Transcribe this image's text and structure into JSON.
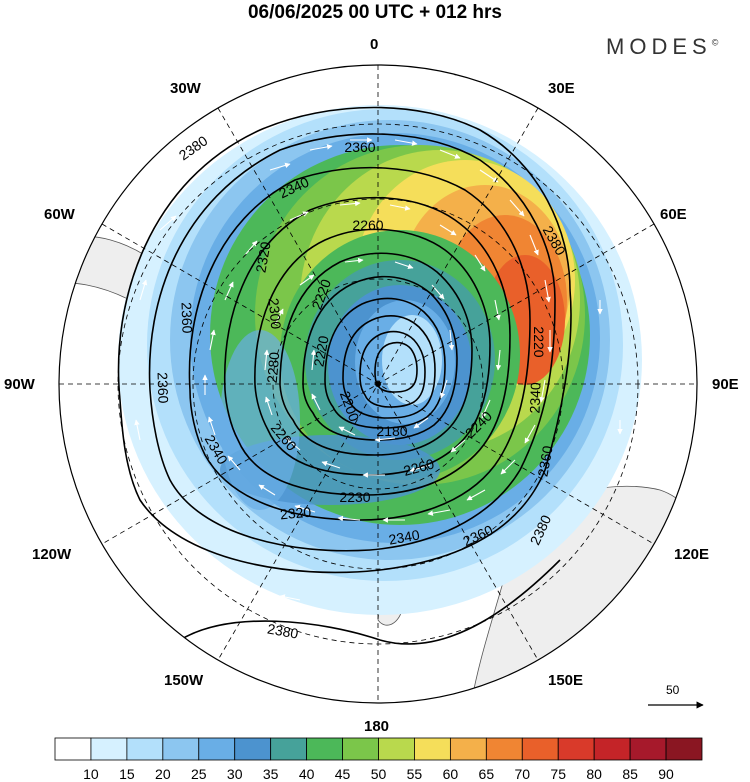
{
  "header": {
    "title": "06/06/2025  00 UTC  + 012 hrs",
    "brand": "MODES",
    "brand_mark": "©"
  },
  "map": {
    "projection": "south polar stereographic",
    "longitude_labels": {
      "top": "0",
      "top_right": "30E",
      "right_upper": "60E",
      "right": "90E",
      "right_lower": "120E",
      "bottom_right": "150E",
      "bottom": "180",
      "bottom_left": "150W",
      "left_lower": "120W",
      "left": "90W",
      "left_upper": "60W",
      "top_left": "30W"
    },
    "contour_labels": [
      "2380",
      "2360",
      "2340",
      "2320",
      "2300",
      "2280",
      "2260",
      "2240",
      "2220",
      "2200",
      "2180",
      "2230"
    ],
    "wind_reference_value": "50",
    "colors": {
      "land": "#eeeeee",
      "contour": "#000000",
      "graticule": "#000000"
    }
  },
  "colorbar": {
    "labels": [
      "10",
      "15",
      "20",
      "25",
      "30",
      "35",
      "40",
      "45",
      "50",
      "55",
      "60",
      "65",
      "70",
      "75",
      "80",
      "85",
      "90"
    ],
    "colors": [
      "#ffffff",
      "#d6f1ff",
      "#b3e0fb",
      "#8cc6f0",
      "#69aee6",
      "#4c93cf",
      "#46a29a",
      "#4cb859",
      "#7bc64a",
      "#b9d94d",
      "#f5de5a",
      "#f4b04a",
      "#f08533",
      "#e9602a",
      "#d93a2a",
      "#c42428",
      "#a6192b",
      "#8a1622"
    ]
  }
}
